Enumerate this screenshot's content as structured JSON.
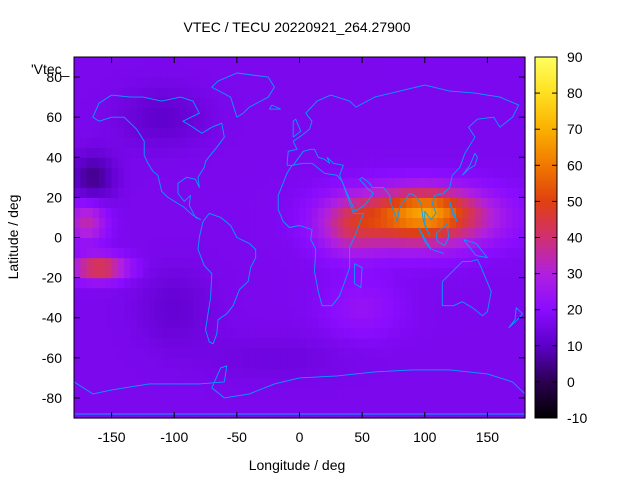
{
  "chart_data": {
    "type": "heatmap",
    "title": "VTEC / TECU 20220921_264.27900",
    "xlabel": "Longitude / deg",
    "ylabel": "Latitude / deg",
    "xlim": [
      -180,
      180
    ],
    "ylim": [
      -90,
      90
    ],
    "x_ticks": [
      -150,
      -100,
      -50,
      0,
      50,
      100,
      150
    ],
    "y_ticks": [
      -80,
      -60,
      -40,
      -20,
      0,
      20,
      40,
      60,
      80
    ],
    "colorbar": {
      "range": [
        -10,
        90
      ],
      "ticks": [
        -10,
        0,
        10,
        20,
        30,
        40,
        50,
        60,
        70,
        80,
        90
      ],
      "palette": [
        "#000000",
        "#2b0050",
        "#5c00c8",
        "#8a0cff",
        "#b020e0",
        "#d03070",
        "#e04010",
        "#f07800",
        "#fab000",
        "#ffe020",
        "#ffff60"
      ]
    },
    "series_label": "'Vtec_",
    "coastline_color": "#00a0ff",
    "background_level": 17,
    "features": [
      {
        "lon": 95,
        "lat": 10,
        "sx": 55,
        "sy": 14,
        "value": 42
      },
      {
        "lon": 105,
        "lat": 15,
        "sx": 28,
        "sy": 8,
        "value": 12
      },
      {
        "lon": 40,
        "lat": 5,
        "sx": 25,
        "sy": 14,
        "value": 14
      },
      {
        "lon": -160,
        "lat": -15,
        "sx": 22,
        "sy": 6,
        "value": 30
      },
      {
        "lon": -170,
        "lat": 8,
        "sx": 15,
        "sy": 10,
        "value": 18
      },
      {
        "lon": 50,
        "lat": -35,
        "sx": 30,
        "sy": 15,
        "value": 6
      },
      {
        "lon": -165,
        "lat": 30,
        "sx": 18,
        "sy": 12,
        "value": -12
      },
      {
        "lon": -110,
        "lat": 60,
        "sx": 35,
        "sy": 15,
        "value": -6
      },
      {
        "lon": -100,
        "lat": -35,
        "sx": 30,
        "sy": 20,
        "value": -5
      },
      {
        "lon": -20,
        "lat": -60,
        "sx": 60,
        "sy": 12,
        "value": -3
      }
    ]
  }
}
